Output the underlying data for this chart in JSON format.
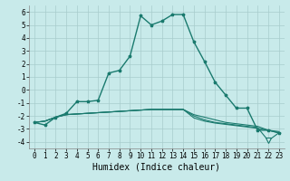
{
  "x": [
    0,
    1,
    2,
    3,
    4,
    5,
    6,
    7,
    8,
    9,
    10,
    11,
    12,
    13,
    14,
    15,
    16,
    17,
    18,
    19,
    20,
    21,
    22,
    23
  ],
  "line1": [
    -2.5,
    -2.7,
    -2.1,
    -1.8,
    -0.9,
    -0.9,
    -0.8,
    1.3,
    1.5,
    2.6,
    5.7,
    5.0,
    5.3,
    5.8,
    5.8,
    3.7,
    2.2,
    0.6,
    -0.4,
    -1.4,
    -1.4,
    -3.1,
    -3.1,
    -3.3
  ],
  "line2": [
    -2.5,
    -2.4,
    -2.1,
    -1.9,
    -1.85,
    -1.8,
    -1.75,
    -1.7,
    -1.65,
    -1.6,
    -1.55,
    -1.5,
    -1.5,
    -1.5,
    -1.5,
    -1.9,
    -2.1,
    -2.3,
    -2.5,
    -2.6,
    -2.7,
    -2.8,
    -3.1,
    -3.2
  ],
  "line3": [
    -2.5,
    -2.4,
    -2.1,
    -1.9,
    -1.85,
    -1.8,
    -1.75,
    -1.7,
    -1.65,
    -1.6,
    -1.55,
    -1.5,
    -1.5,
    -1.5,
    -1.5,
    -2.0,
    -2.3,
    -2.5,
    -2.6,
    -2.7,
    -2.8,
    -2.9,
    -3.9,
    -3.3
  ],
  "line4": [
    -2.5,
    -2.4,
    -2.1,
    -1.9,
    -1.85,
    -1.8,
    -1.75,
    -1.7,
    -1.65,
    -1.6,
    -1.55,
    -1.5,
    -1.5,
    -1.5,
    -1.5,
    -2.15,
    -2.4,
    -2.55,
    -2.65,
    -2.75,
    -2.85,
    -2.95,
    -3.1,
    -3.3
  ],
  "color": "#1a7a6e",
  "bg_color": "#c8eaea",
  "grid_color": "#a8cccc",
  "xlabel": "Humidex (Indice chaleur)",
  "xlabel_fontsize": 7,
  "ylim": [
    -4.5,
    6.5
  ],
  "xlim": [
    -0.5,
    23.5
  ],
  "yticks": [
    -4,
    -3,
    -2,
    -1,
    0,
    1,
    2,
    3,
    4,
    5,
    6
  ],
  "xticks": [
    0,
    1,
    2,
    3,
    4,
    5,
    6,
    7,
    8,
    9,
    10,
    11,
    12,
    13,
    14,
    15,
    16,
    17,
    18,
    19,
    20,
    21,
    22,
    23
  ],
  "tri_x": 22,
  "tri_y": -3.9
}
